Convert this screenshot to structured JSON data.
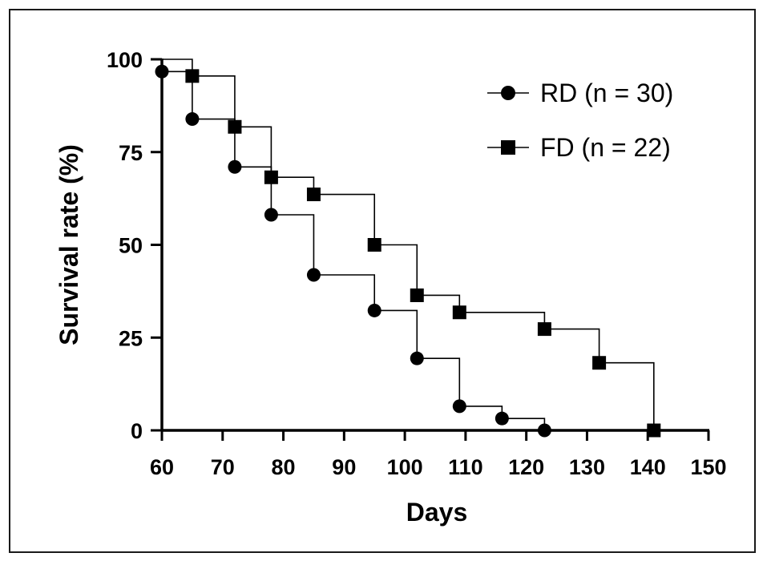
{
  "chart_data": {
    "type": "line",
    "step": true,
    "title": "",
    "xlabel": "Days",
    "ylabel": "Survival rate (%)",
    "xlim": [
      60,
      150
    ],
    "ylim": [
      0,
      100
    ],
    "x_ticks": [
      60,
      70,
      80,
      90,
      100,
      110,
      120,
      130,
      140,
      150
    ],
    "y_ticks": [
      0,
      25,
      50,
      75,
      100
    ],
    "grid": false,
    "legend_position": "top-right",
    "series": [
      {
        "name": "RD (n = 30)",
        "marker": "circle",
        "color": "#000000",
        "x": [
          60,
          65,
          72,
          78,
          85,
          95,
          102,
          109,
          116,
          123
        ],
        "y": [
          96.7,
          83.9,
          71.0,
          58.1,
          41.9,
          32.3,
          19.4,
          6.5,
          3.2,
          0
        ]
      },
      {
        "name": "FD (n = 22)",
        "marker": "square",
        "color": "#000000",
        "x": [
          65,
          72,
          78,
          85,
          95,
          102,
          109,
          123,
          132,
          141
        ],
        "y": [
          95.5,
          81.8,
          68.2,
          63.6,
          50.0,
          36.4,
          31.8,
          27.3,
          18.2,
          0
        ]
      }
    ]
  }
}
